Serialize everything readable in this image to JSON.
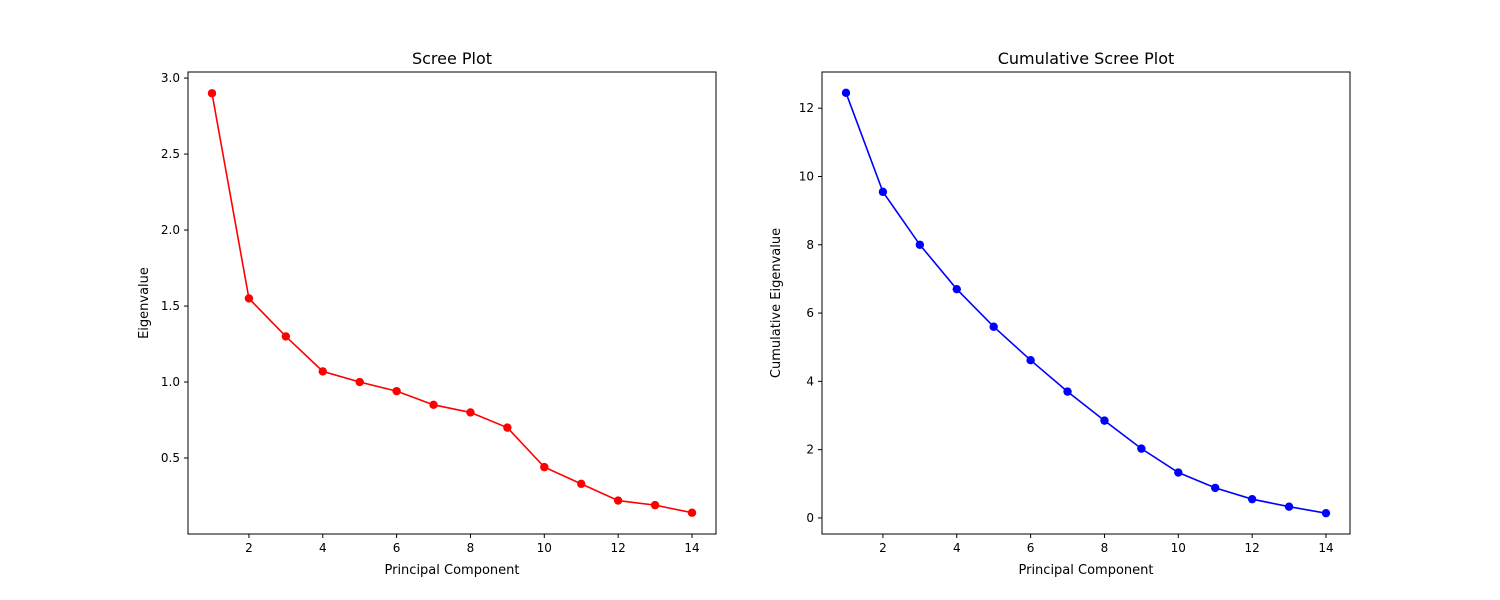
{
  "chart_data": [
    {
      "type": "line",
      "title": "Scree Plot",
      "xlabel": "Principal Component",
      "ylabel": "Eigenvalue",
      "xlim": [
        0.35,
        14.65
      ],
      "ylim": [
        0.0,
        3.04
      ],
      "xticks": [
        2,
        4,
        6,
        8,
        10,
        12,
        14
      ],
      "yticks": [
        0.5,
        1.0,
        1.5,
        2.0,
        2.5,
        3.0
      ],
      "ytick_labels": [
        "0.5",
        "1.0",
        "1.5",
        "2.0",
        "2.5",
        "3.0"
      ],
      "grid": false,
      "color": "#ff0000",
      "marker": "circle",
      "x": [
        1,
        2,
        3,
        4,
        5,
        6,
        7,
        8,
        9,
        10,
        11,
        12,
        13,
        14
      ],
      "y": [
        2.9,
        1.55,
        1.3,
        1.07,
        1.0,
        0.94,
        0.85,
        0.8,
        0.7,
        0.44,
        0.33,
        0.22,
        0.19,
        0.14
      ]
    },
    {
      "type": "line",
      "title": "Cumulative Scree Plot",
      "xlabel": "Principal Component",
      "ylabel": "Cumulative Eigenvalue",
      "xlim": [
        0.35,
        14.65
      ],
      "ylim": [
        -0.47,
        13.06
      ],
      "xticks": [
        2,
        4,
        6,
        8,
        10,
        12,
        14
      ],
      "yticks": [
        0,
        2,
        4,
        6,
        8,
        10,
        12
      ],
      "ytick_labels": [
        "0",
        "2",
        "4",
        "6",
        "8",
        "10",
        "12"
      ],
      "grid": false,
      "color": "#0000ff",
      "marker": "circle",
      "x": [
        1,
        2,
        3,
        4,
        5,
        6,
        7,
        8,
        9,
        10,
        11,
        12,
        13,
        14
      ],
      "y": [
        12.45,
        9.55,
        8.0,
        6.7,
        5.6,
        4.62,
        3.7,
        2.85,
        2.03,
        1.33,
        0.88,
        0.55,
        0.33,
        0.14
      ]
    }
  ]
}
